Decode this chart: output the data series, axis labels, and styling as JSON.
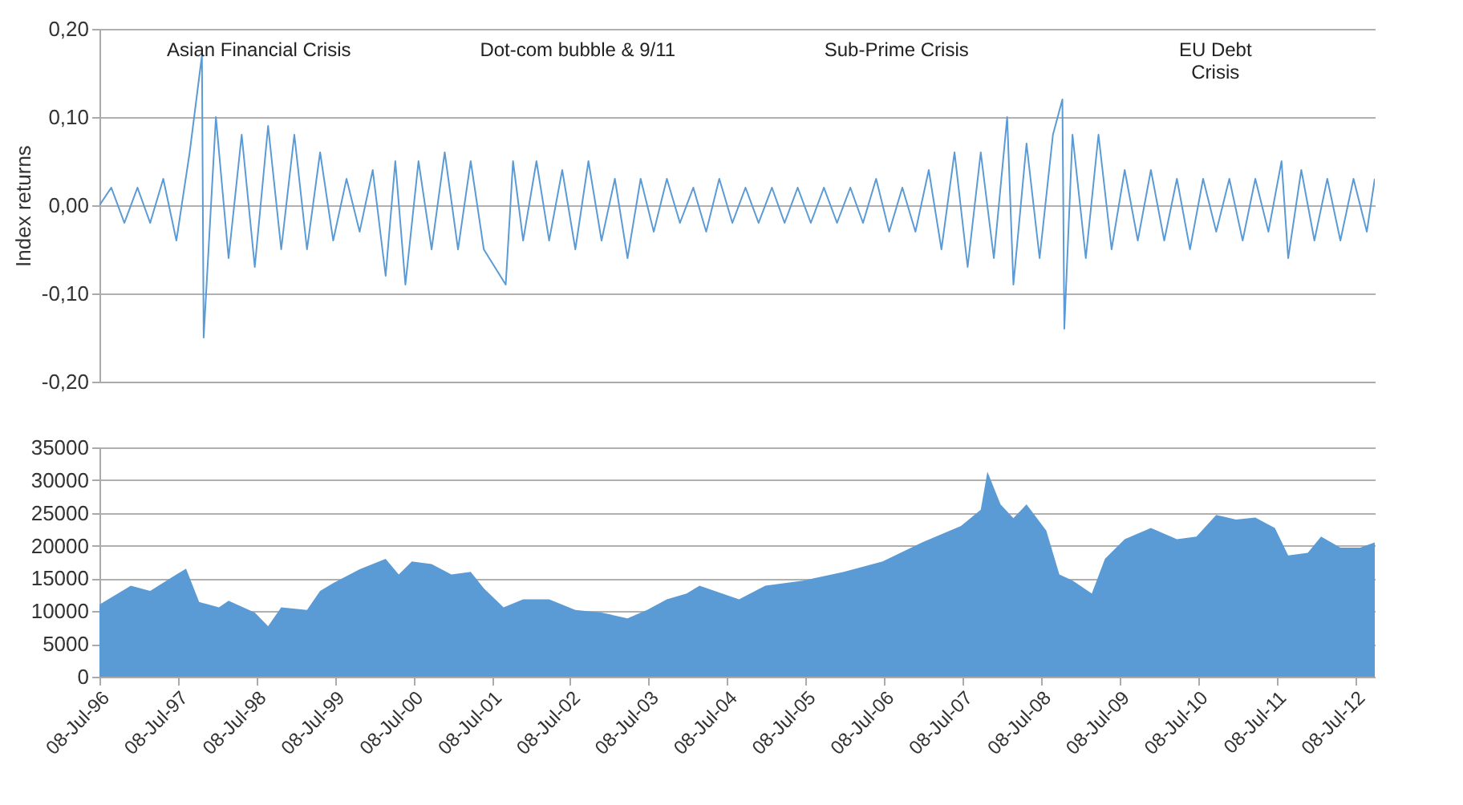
{
  "chart_data": [
    {
      "type": "line",
      "ylabel": "Index returns",
      "color": "#5b9bd5",
      "grid": "y",
      "tick_labels": "y",
      "line_style": "solid",
      "xlim": [
        "1996-07-08",
        "2012-10-08"
      ],
      "ylim": [
        -0.2,
        0.2
      ],
      "yticks": [
        {
          "value": -0.2,
          "label": "-0,20"
        },
        {
          "value": -0.1,
          "label": "-0,10"
        },
        {
          "value": 0,
          "label": "0,00"
        },
        {
          "value": 0.1,
          "label": "0,10"
        },
        {
          "value": 0.2,
          "label": "0,20"
        }
      ],
      "x": [
        "1996-07-08",
        "1996-09-01",
        "1996-11-01",
        "1997-01-01",
        "1997-03-01",
        "1997-05-01",
        "1997-07-01",
        "1997-09-01",
        "1997-10-28",
        "1997-11-05",
        "1998-01-01",
        "1998-03-01",
        "1998-05-01",
        "1998-07-01",
        "1998-09-01",
        "1998-11-01",
        "1999-01-01",
        "1999-03-01",
        "1999-05-01",
        "1999-07-01",
        "1999-09-01",
        "1999-11-01",
        "2000-01-01",
        "2000-03-01",
        "2000-04-15",
        "2000-06-01",
        "2000-08-01",
        "2000-10-01",
        "2000-12-01",
        "2001-02-01",
        "2001-04-01",
        "2001-06-01",
        "2001-09-11",
        "2001-10-15",
        "2001-12-01",
        "2002-02-01",
        "2002-04-01",
        "2002-06-01",
        "2002-08-01",
        "2002-10-01",
        "2002-12-01",
        "2003-02-01",
        "2003-04-01",
        "2003-06-01",
        "2003-08-01",
        "2003-10-01",
        "2003-12-01",
        "2004-02-01",
        "2004-04-01",
        "2004-06-01",
        "2004-08-01",
        "2004-10-01",
        "2004-12-01",
        "2005-02-01",
        "2005-04-01",
        "2005-06-01",
        "2005-08-01",
        "2005-10-01",
        "2005-12-01",
        "2006-02-01",
        "2006-04-01",
        "2006-06-01",
        "2006-08-01",
        "2006-10-01",
        "2006-12-01",
        "2007-02-01",
        "2007-04-01",
        "2007-06-01",
        "2007-08-01",
        "2007-10-01",
        "2007-12-01",
        "2008-02-01",
        "2008-03-01",
        "2008-05-01",
        "2008-07-01",
        "2008-09-01",
        "2008-10-15",
        "2008-10-24",
        "2008-12-01",
        "2009-02-01",
        "2009-04-01",
        "2009-06-01",
        "2009-08-01",
        "2009-10-01",
        "2009-12-01",
        "2010-02-01",
        "2010-04-01",
        "2010-06-01",
        "2010-08-01",
        "2010-10-01",
        "2010-12-01",
        "2011-02-01",
        "2011-04-01",
        "2011-06-01",
        "2011-08-01",
        "2011-09-01",
        "2011-11-01",
        "2012-01-01",
        "2012-03-01",
        "2012-05-01",
        "2012-07-01",
        "2012-09-01",
        "2012-10-08"
      ],
      "values": [
        0.0,
        0.02,
        -0.02,
        0.02,
        -0.02,
        0.03,
        -0.04,
        0.06,
        0.17,
        -0.15,
        0.1,
        -0.06,
        0.08,
        -0.07,
        0.09,
        -0.05,
        0.08,
        -0.05,
        0.06,
        -0.04,
        0.03,
        -0.03,
        0.04,
        -0.08,
        0.05,
        -0.09,
        0.05,
        -0.05,
        0.06,
        -0.05,
        0.05,
        -0.05,
        -0.09,
        0.05,
        -0.04,
        0.05,
        -0.04,
        0.04,
        -0.05,
        0.05,
        -0.04,
        0.03,
        -0.06,
        0.03,
        -0.03,
        0.03,
        -0.02,
        0.02,
        -0.03,
        0.03,
        -0.02,
        0.02,
        -0.02,
        0.02,
        -0.02,
        0.02,
        -0.02,
        0.02,
        -0.02,
        0.02,
        -0.02,
        0.03,
        -0.03,
        0.02,
        -0.03,
        0.04,
        -0.05,
        0.06,
        -0.07,
        0.06,
        -0.06,
        0.1,
        -0.09,
        0.07,
        -0.06,
        0.08,
        0.12,
        -0.14,
        0.08,
        -0.06,
        0.08,
        -0.05,
        0.04,
        -0.04,
        0.04,
        -0.04,
        0.03,
        -0.05,
        0.03,
        -0.03,
        0.03,
        -0.04,
        0.03,
        -0.03,
        0.05,
        -0.06,
        0.04,
        -0.04,
        0.03,
        -0.04,
        0.03,
        -0.03,
        0.03
      ],
      "annotations": [
        "Asian Financial Crisis",
        "Dot-com bubble & 9/11",
        "Sub-Prime Crisis",
        "EU Debt\nCrisis"
      ]
    },
    {
      "type": "area",
      "color": "#5b9bd5",
      "grid": "y",
      "xlim": [
        "1996-07-08",
        "2012-10-08"
      ],
      "xticks": [
        {
          "value": "1996-07-08",
          "label": "08-Jul-96"
        },
        {
          "value": "1997-07-08",
          "label": "08-Jul-97"
        },
        {
          "value": "1998-07-08",
          "label": "08-Jul-98"
        },
        {
          "value": "1999-07-08",
          "label": "08-Jul-99"
        },
        {
          "value": "2000-07-08",
          "label": "08-Jul-00"
        },
        {
          "value": "2001-07-08",
          "label": "08-Jul-01"
        },
        {
          "value": "2002-07-08",
          "label": "08-Jul-02"
        },
        {
          "value": "2003-07-08",
          "label": "08-Jul-03"
        },
        {
          "value": "2004-07-08",
          "label": "08-Jul-04"
        },
        {
          "value": "2005-07-08",
          "label": "08-Jul-05"
        },
        {
          "value": "2006-07-08",
          "label": "08-Jul-06"
        },
        {
          "value": "2007-07-08",
          "label": "08-Jul-07"
        },
        {
          "value": "2008-07-08",
          "label": "08-Jul-08"
        },
        {
          "value": "2009-07-08",
          "label": "08-Jul-09"
        },
        {
          "value": "2010-07-08",
          "label": "08-Jul-10"
        },
        {
          "value": "2011-07-08",
          "label": "08-Jul-11"
        },
        {
          "value": "2012-07-08",
          "label": "08-Jul-12"
        }
      ],
      "ylim": [
        0,
        35000
      ],
      "yticks": [
        {
          "value": 0,
          "label": "0"
        },
        {
          "value": 5000,
          "label": "5000"
        },
        {
          "value": 10000,
          "label": "10000"
        },
        {
          "value": 15000,
          "label": "15000"
        },
        {
          "value": 20000,
          "label": "20000"
        },
        {
          "value": 25000,
          "label": "25000"
        },
        {
          "value": 30000,
          "label": "30000"
        },
        {
          "value": 35000,
          "label": "35000"
        }
      ],
      "x": [
        "1996-07-08",
        "1996-12-01",
        "1997-03-01",
        "1997-07-01",
        "1997-08-15",
        "1997-10-15",
        "1998-01-15",
        "1998-03-01",
        "1998-07-01",
        "1998-09-01",
        "1998-11-01",
        "1999-03-01",
        "1999-05-01",
        "1999-07-01",
        "1999-11-01",
        "2000-03-01",
        "2000-05-01",
        "2000-07-01",
        "2000-10-01",
        "2001-01-01",
        "2001-04-01",
        "2001-06-01",
        "2001-09-01",
        "2001-12-01",
        "2002-04-01",
        "2002-08-01",
        "2002-12-01",
        "2003-04-01",
        "2003-07-01",
        "2003-10-01",
        "2004-01-01",
        "2004-03-01",
        "2004-09-01",
        "2005-01-01",
        "2005-07-01",
        "2006-01-01",
        "2006-07-01",
        "2007-01-01",
        "2007-07-01",
        "2007-10-01",
        "2007-11-01",
        "2008-01-01",
        "2008-03-01",
        "2008-05-01",
        "2008-08-01",
        "2008-10-01",
        "2008-12-01",
        "2009-03-01",
        "2009-05-01",
        "2009-08-01",
        "2009-12-01",
        "2010-04-01",
        "2010-07-01",
        "2010-10-01",
        "2011-01-01",
        "2011-04-01",
        "2011-07-01",
        "2011-09-01",
        "2011-12-01",
        "2012-02-01",
        "2012-05-01",
        "2012-08-01",
        "2012-10-08"
      ],
      "values": [
        11000,
        13900,
        13100,
        15600,
        16500,
        11400,
        10600,
        11600,
        9800,
        7700,
        10600,
        10200,
        13100,
        14300,
        16400,
        18000,
        15600,
        17600,
        17200,
        15600,
        16000,
        13500,
        10600,
        11800,
        11800,
        10200,
        9800,
        8900,
        10200,
        11800,
        12700,
        13900,
        11800,
        13900,
        14700,
        16000,
        17600,
        20500,
        23000,
        25500,
        31300,
        26300,
        24200,
        26300,
        22300,
        15600,
        14700,
        12700,
        18000,
        21000,
        22700,
        21000,
        21400,
        24700,
        24000,
        24300,
        22700,
        18500,
        18900,
        21400,
        19700,
        19700,
        20500
      ]
    }
  ]
}
